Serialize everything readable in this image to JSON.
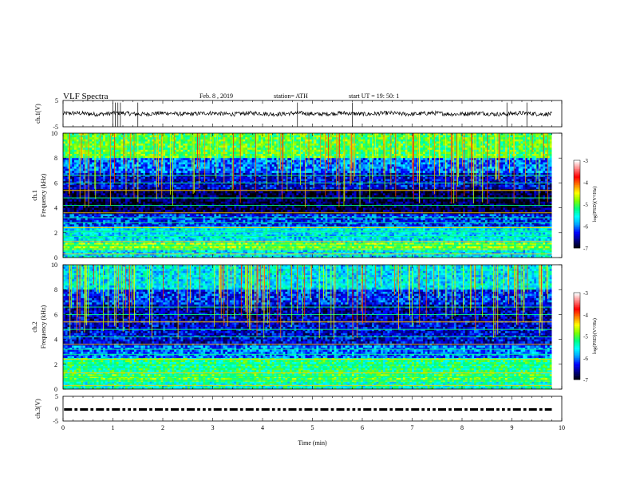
{
  "header": {
    "title": "VLF  Spectra",
    "date": "Feb. 8  , 2019",
    "station": "station= ATH",
    "start_ut": "start  UT  =    19: 50: 1"
  },
  "colors": {
    "trace": "#000000",
    "axis": "#000000",
    "colormap": [
      "#000000",
      "#000080",
      "#0000ff",
      "#00a0ff",
      "#00ffff",
      "#00ff80",
      "#80ff00",
      "#ffff00",
      "#ff8000",
      "#ff0000",
      "#ff8080",
      "#ffffff"
    ]
  },
  "chart_data": [
    {
      "type": "line",
      "name": "ch1-voltage",
      "ylabel": "ch.1(V)",
      "ylim": [
        -5,
        5
      ],
      "yticks": [
        "5",
        "-5"
      ],
      "xlim": [
        0,
        10
      ],
      "series": [
        {
          "x_range": [
            0,
            9.8
          ],
          "baseline": 0.0,
          "noise_amplitude": 1.0,
          "spikes_at": [
            1.0,
            1.05,
            1.1,
            1.15,
            1.5,
            4.7,
            5.8,
            8.9,
            9.3
          ]
        }
      ]
    },
    {
      "type": "heatmap",
      "name": "ch1-spectrogram",
      "ylabel": "ch.1\nFrequency (kHz)",
      "xlim": [
        0,
        10
      ],
      "ylim": [
        0,
        10
      ],
      "yticks": [
        "0",
        "2",
        "4",
        "6",
        "8",
        "10"
      ],
      "data_extent_x": [
        0,
        9.8
      ],
      "colorbar": {
        "label": "log(PSD)(V²/Hz)",
        "range": [
          -7,
          -3
        ],
        "ticks": [
          "-3",
          "-4",
          "-5",
          "-6",
          "-7"
        ]
      },
      "bands": [
        {
          "f": [
            8.0,
            10.0
          ],
          "level": -5.0
        },
        {
          "f": [
            6.8,
            8.0
          ],
          "level": -6.0
        },
        {
          "f": [
            5.5,
            6.8
          ],
          "level": -6.4
        },
        {
          "f": [
            3.5,
            5.5
          ],
          "level": -6.8
        },
        {
          "f": [
            2.5,
            3.5
          ],
          "level": -6.2
        },
        {
          "f": [
            1.2,
            2.5
          ],
          "level": -5.6
        },
        {
          "f": [
            0.6,
            1.2
          ],
          "level": -4.8
        },
        {
          "f": [
            0.0,
            0.6
          ],
          "level": -5.6
        }
      ],
      "lines_khz": [
        0.3,
        0.7,
        1.0,
        1.3,
        1.7,
        2.1,
        2.4,
        2.8,
        3.2,
        3.6,
        4.2,
        4.8,
        5.4,
        6.0,
        6.6
      ]
    },
    {
      "type": "heatmap",
      "name": "ch2-spectrogram",
      "ylabel": "ch.2\nFrequency (kHz)",
      "xlim": [
        0,
        10
      ],
      "ylim": [
        0,
        10
      ],
      "yticks": [
        "0",
        "2",
        "4",
        "6",
        "8",
        "10"
      ],
      "data_extent_x": [
        0,
        9.8
      ],
      "colorbar": {
        "label": "log(PSD)(V²/Hz)",
        "range": [
          -7,
          -3
        ],
        "ticks": [
          "-3",
          "-4",
          "-5",
          "-6",
          "-7"
        ]
      },
      "bands": [
        {
          "f": [
            8.0,
            10.0
          ],
          "level": -5.6
        },
        {
          "f": [
            6.8,
            8.0
          ],
          "level": -6.2
        },
        {
          "f": [
            5.5,
            6.8
          ],
          "level": -6.5
        },
        {
          "f": [
            3.5,
            5.5
          ],
          "level": -6.4
        },
        {
          "f": [
            2.5,
            3.5
          ],
          "level": -6.0
        },
        {
          "f": [
            1.2,
            2.5
          ],
          "level": -5.2
        },
        {
          "f": [
            0.6,
            1.2
          ],
          "level": -5.0
        },
        {
          "f": [
            0.0,
            0.6
          ],
          "level": -5.4
        }
      ],
      "lines_khz": [
        0.3,
        0.7,
        1.0,
        1.3,
        1.7,
        2.0,
        2.4,
        2.8,
        3.2,
        3.6,
        4.2,
        4.8,
        5.4,
        6.0,
        6.6
      ]
    },
    {
      "type": "line",
      "name": "ch3-voltage",
      "ylabel": "ch.3(V)",
      "ylim": [
        -5,
        5
      ],
      "yticks": [
        "5",
        "0",
        "-5"
      ],
      "xlim": [
        0,
        10
      ],
      "xlabel": "Time  (min)",
      "xticks": [
        "0",
        "1",
        "2",
        "3",
        "4",
        "5",
        "6",
        "7",
        "8",
        "9",
        "10"
      ],
      "series": [
        {
          "x_range": [
            0,
            9.8
          ],
          "baseline": 0.0,
          "pattern": "pulse-train"
        }
      ]
    }
  ]
}
